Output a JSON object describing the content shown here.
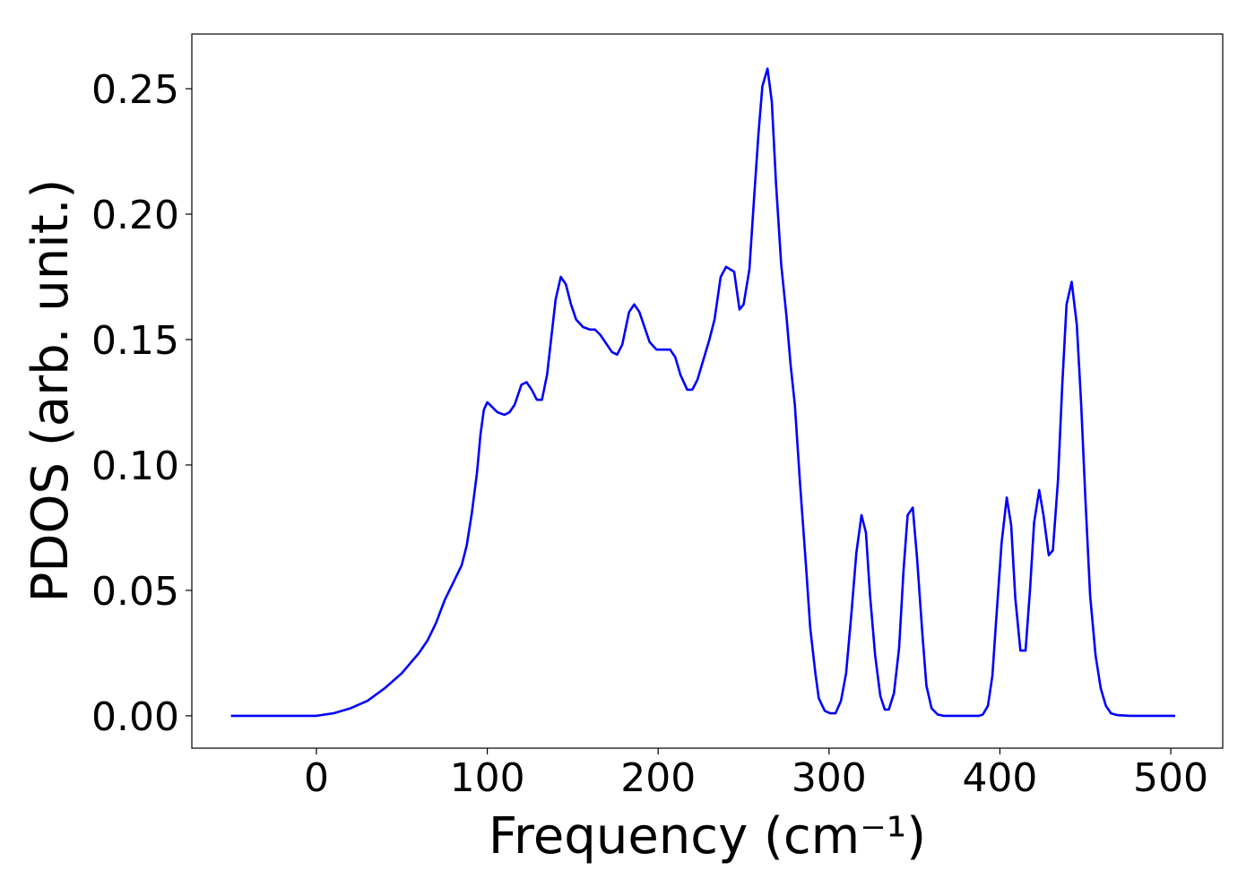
{
  "chart_data": {
    "type": "line",
    "x_label": "Frequency (cm⁻¹)",
    "y_label": "PDOS (arb. unit.)",
    "color": "#0000ff",
    "x": [
      -50,
      0,
      10,
      20,
      30,
      40,
      50,
      60,
      65,
      70,
      75,
      80,
      85,
      88,
      91,
      94,
      96,
      98,
      100,
      103,
      106,
      110,
      113,
      116,
      120,
      123,
      126,
      129,
      132,
      135,
      140,
      143,
      146,
      149,
      152,
      156,
      160,
      163,
      166,
      170,
      173,
      176,
      179,
      183,
      186,
      189,
      192,
      195,
      199,
      203,
      207,
      210,
      213,
      217,
      220,
      223,
      230,
      233,
      236.6,
      239.8,
      244.5,
      247.6,
      250,
      253.4,
      256,
      258.7,
      261,
      264,
      266.5,
      269,
      272,
      275,
      277.5,
      280,
      283,
      286.5,
      289,
      292,
      294,
      297.5,
      300.6,
      303.8,
      307,
      310,
      313,
      316,
      319,
      321.6,
      324,
      327,
      330,
      332.6,
      335,
      338,
      341,
      343.6,
      346,
      349,
      351.5,
      354.7,
      357,
      360,
      363.6,
      367,
      387.7,
      390,
      393,
      395.6,
      398,
      401,
      404,
      406.6,
      409,
      412,
      415,
      417.6,
      420,
      423,
      425.5,
      428.6,
      431,
      434,
      436.5,
      439,
      442,
      445,
      447.5,
      450,
      452.8,
      456,
      459,
      462,
      465,
      468.5,
      476,
      502.6
    ],
    "values": [
      0,
      0,
      0.001,
      0.003,
      0.006,
      0.011,
      0.017,
      0.025,
      0.03,
      0.037,
      0.046,
      0.053,
      0.06,
      0.068,
      0.081,
      0.097,
      0.112,
      0.122,
      0.125,
      0.123,
      0.121,
      0.12,
      0.121,
      0.124,
      0.132,
      0.133,
      0.13,
      0.126,
      0.126,
      0.136,
      0.166,
      0.175,
      0.172,
      0.164,
      0.158,
      0.155,
      0.154,
      0.154,
      0.152,
      0.148,
      0.145,
      0.144,
      0.148,
      0.161,
      0.164,
      0.161,
      0.155,
      0.149,
      0.146,
      0.146,
      0.146,
      0.143,
      0.136,
      0.13,
      0.13,
      0.134,
      0.15,
      0.158,
      0.175,
      0.179,
      0.177,
      0.162,
      0.164,
      0.178,
      0.205,
      0.232,
      0.251,
      0.258,
      0.245,
      0.212,
      0.18,
      0.16,
      0.14,
      0.124,
      0.093,
      0.06,
      0.035,
      0.017,
      0.007,
      0.002,
      0.001,
      0.001,
      0.006,
      0.017,
      0.04,
      0.065,
      0.08,
      0.073,
      0.048,
      0.024,
      0.008,
      0.0025,
      0.0025,
      0.009,
      0.027,
      0.058,
      0.08,
      0.083,
      0.063,
      0.032,
      0.012,
      0.003,
      0.0005,
      0,
      0,
      0.0005,
      0.004,
      0.016,
      0.04,
      0.069,
      0.087,
      0.076,
      0.047,
      0.026,
      0.026,
      0.05,
      0.077,
      0.09,
      0.08,
      0.064,
      0.066,
      0.094,
      0.132,
      0.164,
      0.173,
      0.156,
      0.125,
      0.087,
      0.048,
      0.024,
      0.011,
      0.004,
      0.001,
      0.0003,
      0,
      0
    ],
    "xlim": [
      -72.9,
      530.4
    ],
    "ylim": [
      -0.0129,
      0.2718
    ],
    "xticks": [
      0,
      100,
      200,
      300,
      400,
      500
    ],
    "yticks": [
      {
        "value": 0,
        "label": "0.00"
      },
      0.05,
      {
        "value": 0.1,
        "label": "0.10"
      },
      0.15,
      {
        "value": 0.2,
        "label": "0.20"
      },
      0.25
    ]
  }
}
